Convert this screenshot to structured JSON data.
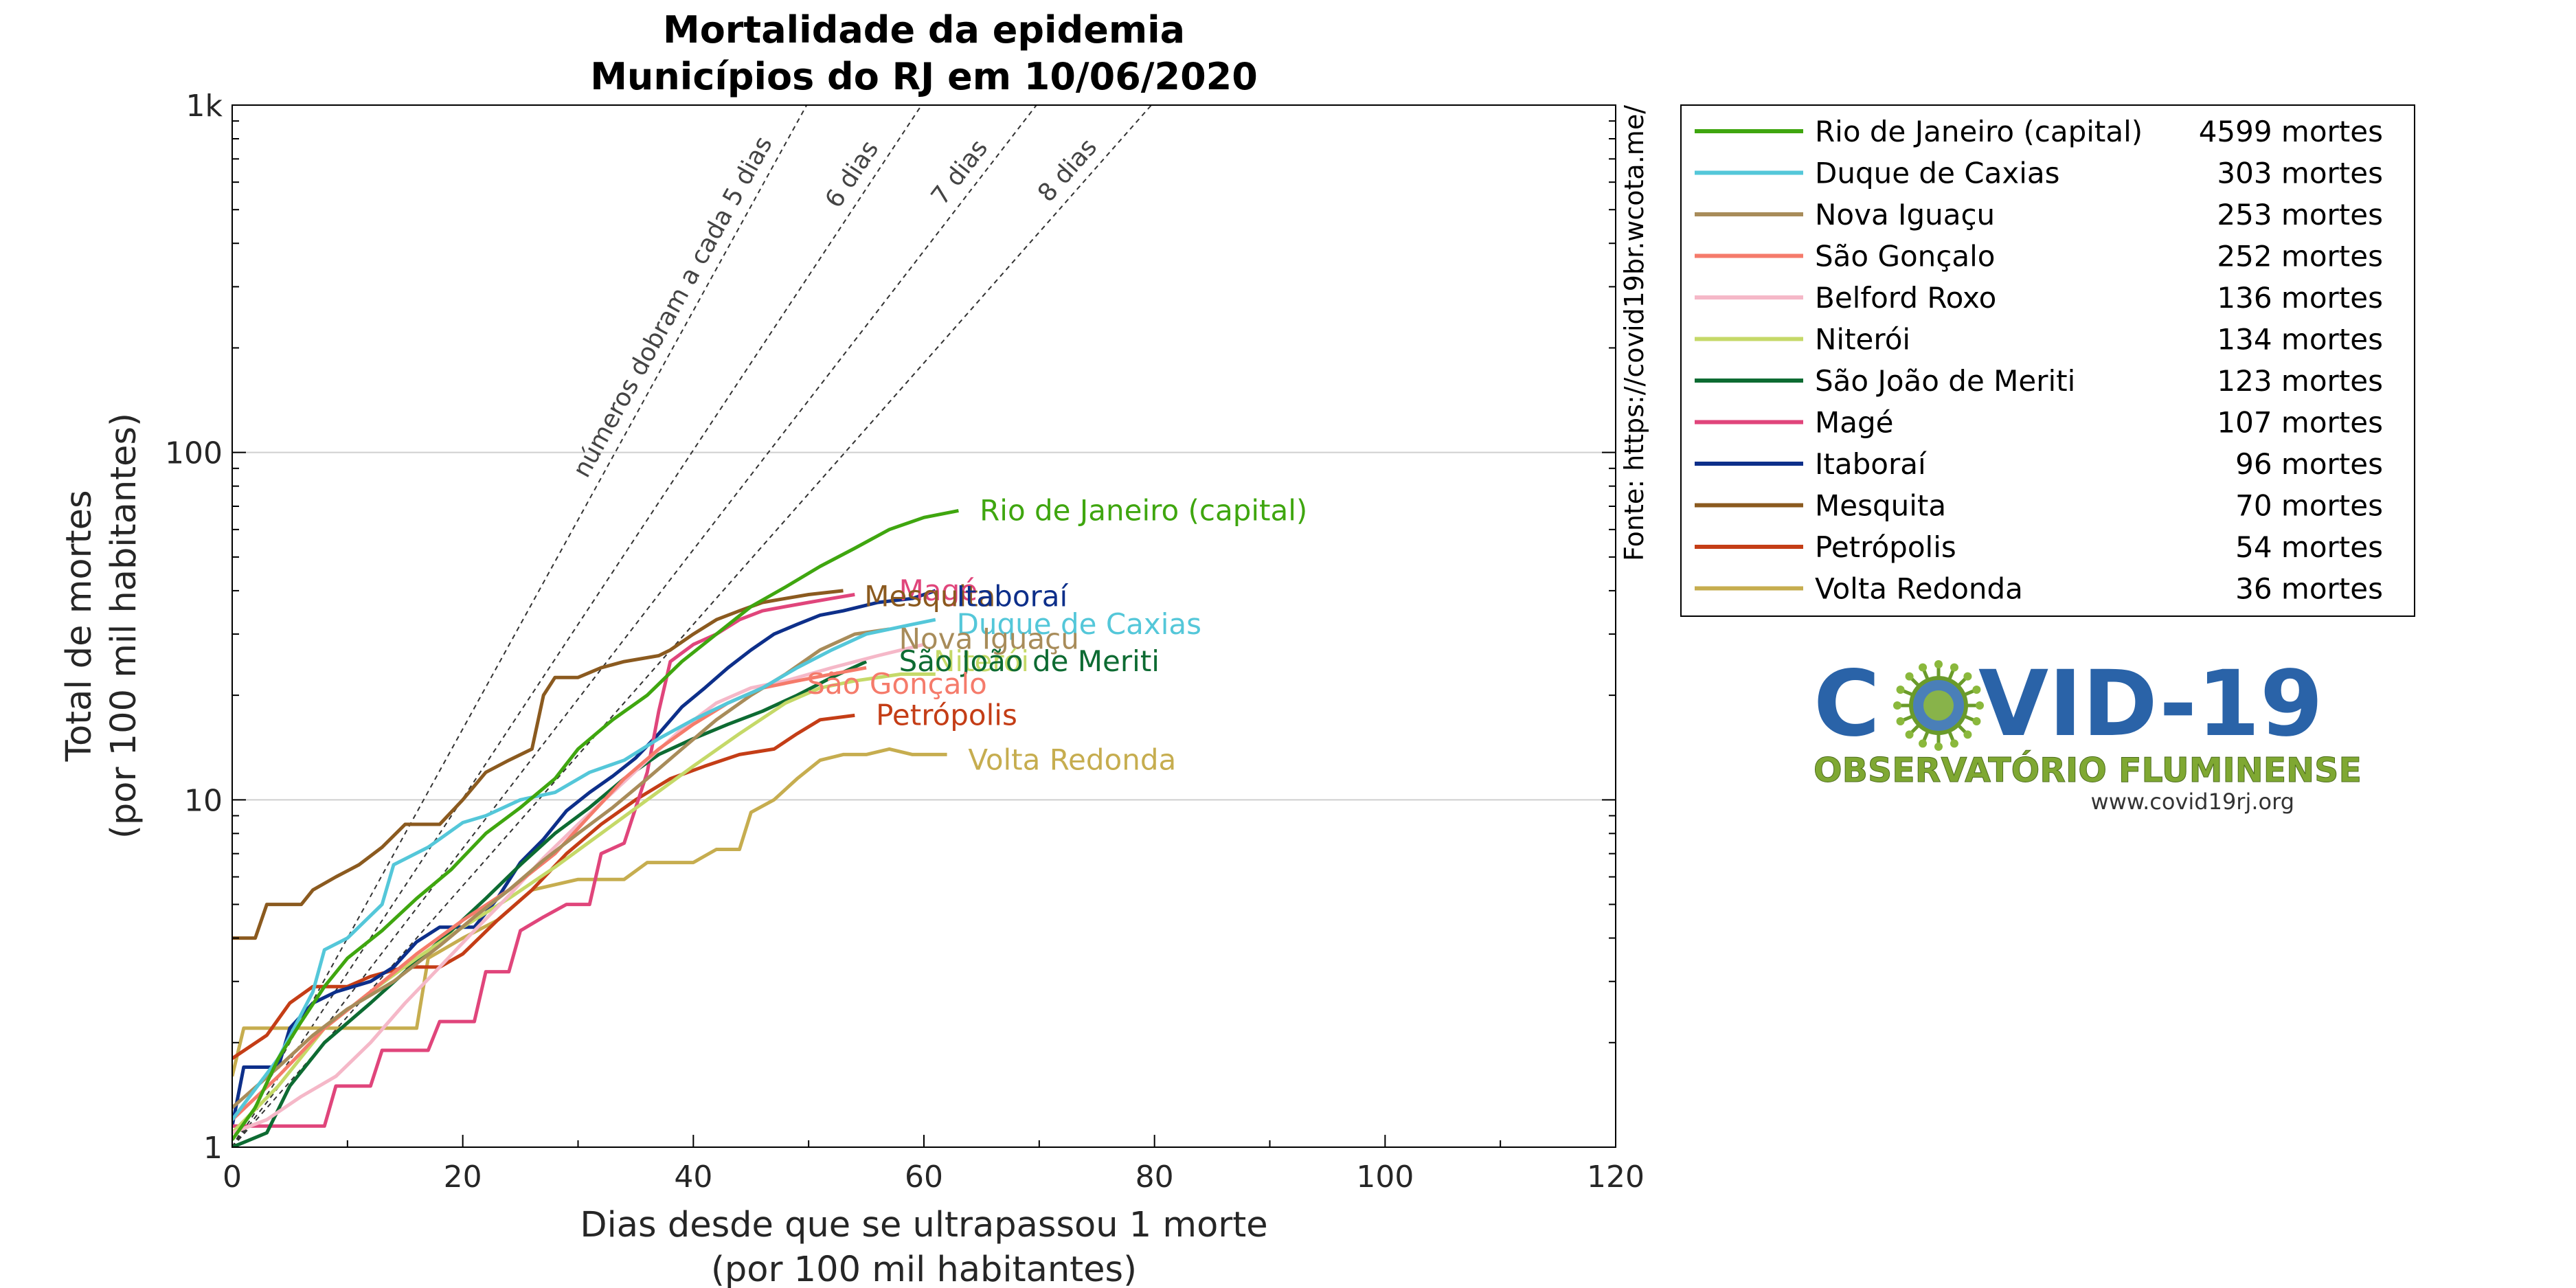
{
  "chart_data": {
    "type": "line",
    "title": [
      "Mortalidade da epidemia",
      "Municípios do RJ em 10/06/2020"
    ],
    "xlabel": [
      "Dias desde que se ultrapassou 1 morte",
      "(por 100 mil habitantes)"
    ],
    "ylabel": [
      "Total de mortes",
      "(por 100 mil habitantes)"
    ],
    "xlim": [
      0,
      120
    ],
    "ylim": [
      1,
      1000
    ],
    "yscale": "log",
    "xticks": [
      0,
      20,
      40,
      60,
      80,
      100,
      120
    ],
    "yticks": [
      {
        "value": 1,
        "label": "1"
      },
      {
        "value": 10,
        "label": "10"
      },
      {
        "value": 100,
        "label": "100"
      },
      {
        "value": 1000,
        "label": "1k"
      }
    ],
    "grid": "horizontal at 10 and 100",
    "source_text": "Fonte: https://covid19br.wcota.me/",
    "legend_position": "right",
    "reference_lines": [
      {
        "label": "números dobram a cada 5 dias",
        "doubling_days": 5
      },
      {
        "label": "6 dias",
        "doubling_days": 6
      },
      {
        "label": "7 dias",
        "doubling_days": 7
      },
      {
        "label": "8 dias",
        "doubling_days": 8
      }
    ],
    "series": [
      {
        "name": "Rio de Janeiro (capital)",
        "legend": "4599 mortes",
        "color": "#3fa60f",
        "points": [
          [
            0,
            1.05
          ],
          [
            2,
            1.3
          ],
          [
            4,
            1.8
          ],
          [
            6,
            2.3
          ],
          [
            8,
            2.9
          ],
          [
            10,
            3.5
          ],
          [
            13,
            4.2
          ],
          [
            16,
            5.2
          ],
          [
            19,
            6.3
          ],
          [
            22,
            8
          ],
          [
            25,
            9.5
          ],
          [
            28,
            11.5
          ],
          [
            30,
            14
          ],
          [
            33,
            17
          ],
          [
            36,
            20
          ],
          [
            39,
            25
          ],
          [
            42,
            30
          ],
          [
            45,
            36
          ],
          [
            48,
            41
          ],
          [
            51,
            47
          ],
          [
            54,
            53
          ],
          [
            57,
            60
          ],
          [
            60,
            65
          ],
          [
            63,
            68
          ]
        ]
      },
      {
        "name": "Duque de Caxias",
        "legend": "303 mortes",
        "color": "#54c7d9",
        "points": [
          [
            0,
            1.2
          ],
          [
            4,
            1.8
          ],
          [
            7,
            2.8
          ],
          [
            8,
            3.7
          ],
          [
            10,
            4
          ],
          [
            13,
            5
          ],
          [
            14,
            6.5
          ],
          [
            17,
            7.3
          ],
          [
            20,
            8.6
          ],
          [
            22,
            9
          ],
          [
            25,
            10
          ],
          [
            28,
            10.5
          ],
          [
            31,
            12
          ],
          [
            34,
            13
          ],
          [
            37,
            15
          ],
          [
            40,
            17
          ],
          [
            43,
            19
          ],
          [
            46,
            21
          ],
          [
            49,
            24
          ],
          [
            52,
            27
          ],
          [
            55,
            30
          ],
          [
            59,
            32
          ],
          [
            61,
            33
          ]
        ]
      },
      {
        "name": "Nova Iguaçu",
        "legend": "253 mortes",
        "color": "#a88c5a",
        "points": [
          [
            0,
            1.3
          ],
          [
            4,
            1.7
          ],
          [
            7,
            2.1
          ],
          [
            10,
            2.5
          ],
          [
            14,
            3
          ],
          [
            18,
            3.8
          ],
          [
            21,
            4.6
          ],
          [
            24,
            5.5
          ],
          [
            27,
            6.7
          ],
          [
            30,
            8
          ],
          [
            33,
            9.5
          ],
          [
            36,
            11.5
          ],
          [
            39,
            14
          ],
          [
            42,
            17
          ],
          [
            45,
            20
          ],
          [
            48,
            23
          ],
          [
            51,
            27
          ],
          [
            54,
            30
          ],
          [
            57,
            31
          ]
        ]
      },
      {
        "name": "São Gonçalo",
        "legend": "252 mortes",
        "color": "#f57b6b",
        "points": [
          [
            0,
            1.2
          ],
          [
            4,
            1.6
          ],
          [
            8,
            2.2
          ],
          [
            12,
            2.8
          ],
          [
            16,
            3.6
          ],
          [
            20,
            4.5
          ],
          [
            24,
            5.5
          ],
          [
            28,
            7
          ],
          [
            31,
            9
          ],
          [
            34,
            11.5
          ],
          [
            37,
            14
          ],
          [
            40,
            16.5
          ],
          [
            43,
            19
          ],
          [
            46,
            21
          ],
          [
            49,
            22
          ],
          [
            52,
            23
          ],
          [
            55,
            24
          ]
        ]
      },
      {
        "name": "Belford Roxo",
        "legend": "136 mortes",
        "color": "#f5b8c8",
        "points": [
          [
            0,
            1.1
          ],
          [
            3,
            1.2
          ],
          [
            6,
            1.4
          ],
          [
            9,
            1.6
          ],
          [
            12,
            2
          ],
          [
            15,
            2.6
          ],
          [
            18,
            3.3
          ],
          [
            21,
            4.2
          ],
          [
            24,
            5.3
          ],
          [
            27,
            6.8
          ],
          [
            30,
            8.5
          ],
          [
            33,
            10.5
          ],
          [
            36,
            13
          ],
          [
            39,
            16
          ],
          [
            42,
            19
          ],
          [
            45,
            21
          ],
          [
            48,
            22
          ],
          [
            52,
            24
          ],
          [
            56,
            26
          ],
          [
            60,
            28
          ]
        ]
      },
      {
        "name": "Niterói",
        "legend": "134 mortes",
        "color": "#c5d968",
        "points": [
          [
            0,
            1.1
          ],
          [
            4,
            1.5
          ],
          [
            8,
            2.2
          ],
          [
            12,
            2.8
          ],
          [
            16,
            3.5
          ],
          [
            20,
            4.3
          ],
          [
            24,
            5.2
          ],
          [
            28,
            6.4
          ],
          [
            32,
            8
          ],
          [
            36,
            10
          ],
          [
            40,
            12.5
          ],
          [
            44,
            15.5
          ],
          [
            48,
            19
          ],
          [
            51,
            21
          ],
          [
            54,
            22
          ],
          [
            58,
            23
          ],
          [
            61,
            23
          ]
        ]
      },
      {
        "name": "São João de Meriti",
        "legend": "123 mortes",
        "color": "#0d6b32",
        "points": [
          [
            0,
            1
          ],
          [
            3,
            1.1
          ],
          [
            5,
            1.5
          ],
          [
            8,
            2
          ],
          [
            12,
            2.6
          ],
          [
            15,
            3.2
          ],
          [
            19,
            4.2
          ],
          [
            22,
            5.2
          ],
          [
            25,
            6.5
          ],
          [
            28,
            8
          ],
          [
            31,
            9.5
          ],
          [
            34,
            11.5
          ],
          [
            37,
            13.5
          ],
          [
            40,
            15
          ],
          [
            43,
            16.5
          ],
          [
            46,
            18
          ],
          [
            49,
            20
          ],
          [
            52,
            22.5
          ],
          [
            55,
            25
          ]
        ]
      },
      {
        "name": "Magé",
        "legend": "107 mortes",
        "color": "#e0457b",
        "points": [
          [
            0,
            1.15
          ],
          [
            8,
            1.15
          ],
          [
            9,
            1.5
          ],
          [
            12,
            1.5
          ],
          [
            13,
            1.9
          ],
          [
            17,
            1.9
          ],
          [
            18,
            2.3
          ],
          [
            21,
            2.3
          ],
          [
            22,
            3.2
          ],
          [
            24,
            3.2
          ],
          [
            25,
            4.2
          ],
          [
            27,
            4.6
          ],
          [
            29,
            5
          ],
          [
            31,
            5
          ],
          [
            32,
            7
          ],
          [
            34,
            7.5
          ],
          [
            36,
            12
          ],
          [
            37,
            18
          ],
          [
            38,
            25
          ],
          [
            40,
            28
          ],
          [
            42,
            30
          ],
          [
            44,
            33
          ],
          [
            46,
            35
          ],
          [
            48,
            36
          ],
          [
            50,
            37
          ],
          [
            52,
            38
          ],
          [
            54,
            39
          ]
        ]
      },
      {
        "name": "Itaboraí",
        "legend": "96 mortes",
        "color": "#0d2f8a",
        "points": [
          [
            0,
            1.15
          ],
          [
            1,
            1.7
          ],
          [
            4,
            1.7
          ],
          [
            5,
            2.2
          ],
          [
            7,
            2.6
          ],
          [
            9,
            2.8
          ],
          [
            12,
            3
          ],
          [
            14,
            3.3
          ],
          [
            16,
            3.9
          ],
          [
            18,
            4.3
          ],
          [
            21,
            4.3
          ],
          [
            23,
            5.2
          ],
          [
            25,
            6.6
          ],
          [
            27,
            7.7
          ],
          [
            29,
            9.3
          ],
          [
            31,
            10.5
          ],
          [
            33,
            11.7
          ],
          [
            35,
            13.2
          ],
          [
            37,
            15.5
          ],
          [
            39,
            18.5
          ],
          [
            41,
            21
          ],
          [
            43,
            24
          ],
          [
            45,
            27
          ],
          [
            47,
            30
          ],
          [
            49,
            32
          ],
          [
            51,
            34
          ],
          [
            53,
            35
          ],
          [
            56,
            37
          ],
          [
            59,
            38
          ],
          [
            61,
            40
          ]
        ]
      },
      {
        "name": "Mesquita",
        "legend": "70 mortes",
        "color": "#8b5a1f",
        "points": [
          [
            0,
            4
          ],
          [
            2,
            4
          ],
          [
            3,
            5
          ],
          [
            6,
            5
          ],
          [
            7,
            5.5
          ],
          [
            9,
            6
          ],
          [
            11,
            6.5
          ],
          [
            13,
            7.3
          ],
          [
            15,
            8.5
          ],
          [
            18,
            8.5
          ],
          [
            20,
            10
          ],
          [
            22,
            12
          ],
          [
            24,
            13
          ],
          [
            26,
            14
          ],
          [
            27,
            20
          ],
          [
            28,
            22.5
          ],
          [
            30,
            22.5
          ],
          [
            32,
            24
          ],
          [
            34,
            25
          ],
          [
            37,
            26
          ],
          [
            38,
            27
          ],
          [
            40,
            30
          ],
          [
            42,
            33
          ],
          [
            44,
            35
          ],
          [
            46,
            37
          ],
          [
            48,
            38
          ],
          [
            50,
            39
          ],
          [
            53,
            40
          ]
        ]
      },
      {
        "name": "Petrópolis",
        "legend": "54 mortes",
        "color": "#c43d16",
        "points": [
          [
            0,
            1.8
          ],
          [
            3,
            2.1
          ],
          [
            5,
            2.6
          ],
          [
            7,
            2.9
          ],
          [
            10,
            2.9
          ],
          [
            12,
            3.1
          ],
          [
            15,
            3.3
          ],
          [
            18,
            3.3
          ],
          [
            20,
            3.6
          ],
          [
            23,
            4.5
          ],
          [
            26,
            5.5
          ],
          [
            29,
            7
          ],
          [
            32,
            8.5
          ],
          [
            35,
            10
          ],
          [
            38,
            11.5
          ],
          [
            41,
            12.5
          ],
          [
            44,
            13.5
          ],
          [
            47,
            14
          ],
          [
            49,
            15.5
          ],
          [
            51,
            17
          ],
          [
            54,
            17.5
          ]
        ]
      },
      {
        "name": "Volta Redonda",
        "legend": "36 mortes",
        "color": "#c6ad4f",
        "points": [
          [
            0,
            1.6
          ],
          [
            1,
            2.2
          ],
          [
            2,
            2.2
          ],
          [
            16,
            2.2
          ],
          [
            17,
            3.5
          ],
          [
            20,
            4
          ],
          [
            23,
            4.5
          ],
          [
            26,
            5.5
          ],
          [
            30,
            5.9
          ],
          [
            34,
            5.9
          ],
          [
            36,
            6.6
          ],
          [
            40,
            6.6
          ],
          [
            42,
            7.2
          ],
          [
            44,
            7.2
          ],
          [
            45,
            9.2
          ],
          [
            47,
            10
          ],
          [
            49,
            11.5
          ],
          [
            51,
            13
          ],
          [
            53,
            13.5
          ],
          [
            55,
            13.5
          ],
          [
            57,
            14
          ],
          [
            59,
            13.5
          ],
          [
            62,
            13.5
          ]
        ]
      }
    ],
    "end_labels": [
      {
        "series": "Rio de Janeiro (capital)",
        "text": "Rio de Janeiro (capital)",
        "x": 64,
        "y": 68
      },
      {
        "series": "Magé",
        "text": "Magé",
        "x": 57,
        "y": 40
      },
      {
        "series": "Mesquita",
        "text": "Mesquita",
        "x": 54,
        "y": 38.5
      },
      {
        "series": "Itaboraí",
        "text": "Itaboraí",
        "x": 62,
        "y": 38.5
      },
      {
        "series": "Duque de Caxias",
        "text": "Duque de Caxias",
        "x": 62,
        "y": 32
      },
      {
        "series": "Nova Iguaçu",
        "text": "Nova Iguaçu",
        "x": 57,
        "y": 29
      },
      {
        "series": "Niterói",
        "text": "Niterói",
        "x": 60,
        "y": 25
      },
      {
        "series": "São João de Meriti",
        "text": "São João de Meriti",
        "x": 57,
        "y": 25
      },
      {
        "series": "São Gonçalo",
        "text": "São Gonçalo",
        "x": 49,
        "y": 21.5
      },
      {
        "series": "Petrópolis",
        "text": "Petrópolis",
        "x": 55,
        "y": 17.5
      },
      {
        "series": "Volta Redonda",
        "text": "Volta Redonda",
        "x": 63,
        "y": 13
      }
    ]
  },
  "logo": {
    "title": "COVID-19",
    "subtitle": "OBSERVATÓRIO FLUMINENSE",
    "url": "www.covid19rj.org",
    "main_color": "#2a63a8",
    "sub_color": "#7fa832"
  }
}
